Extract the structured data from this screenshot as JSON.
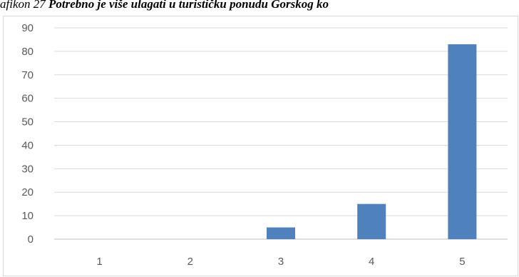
{
  "caption": {
    "lead": "afikon  27",
    "rest": " Potrebno je više ulagati u turističku ponudu Gorskog ko"
  },
  "chart_data": {
    "type": "bar",
    "categories": [
      "1",
      "2",
      "3",
      "4",
      "5"
    ],
    "values": [
      0,
      0,
      5,
      15,
      83
    ],
    "ylim": [
      0,
      90
    ],
    "yticks": [
      0,
      10,
      20,
      30,
      40,
      50,
      60,
      70,
      80,
      90
    ],
    "grid": true,
    "legend": "none",
    "colors": {
      "bar": "#4f81bd",
      "grid": "#d9d9d9",
      "axis": "#bfbfbf",
      "text": "#595959"
    }
  }
}
